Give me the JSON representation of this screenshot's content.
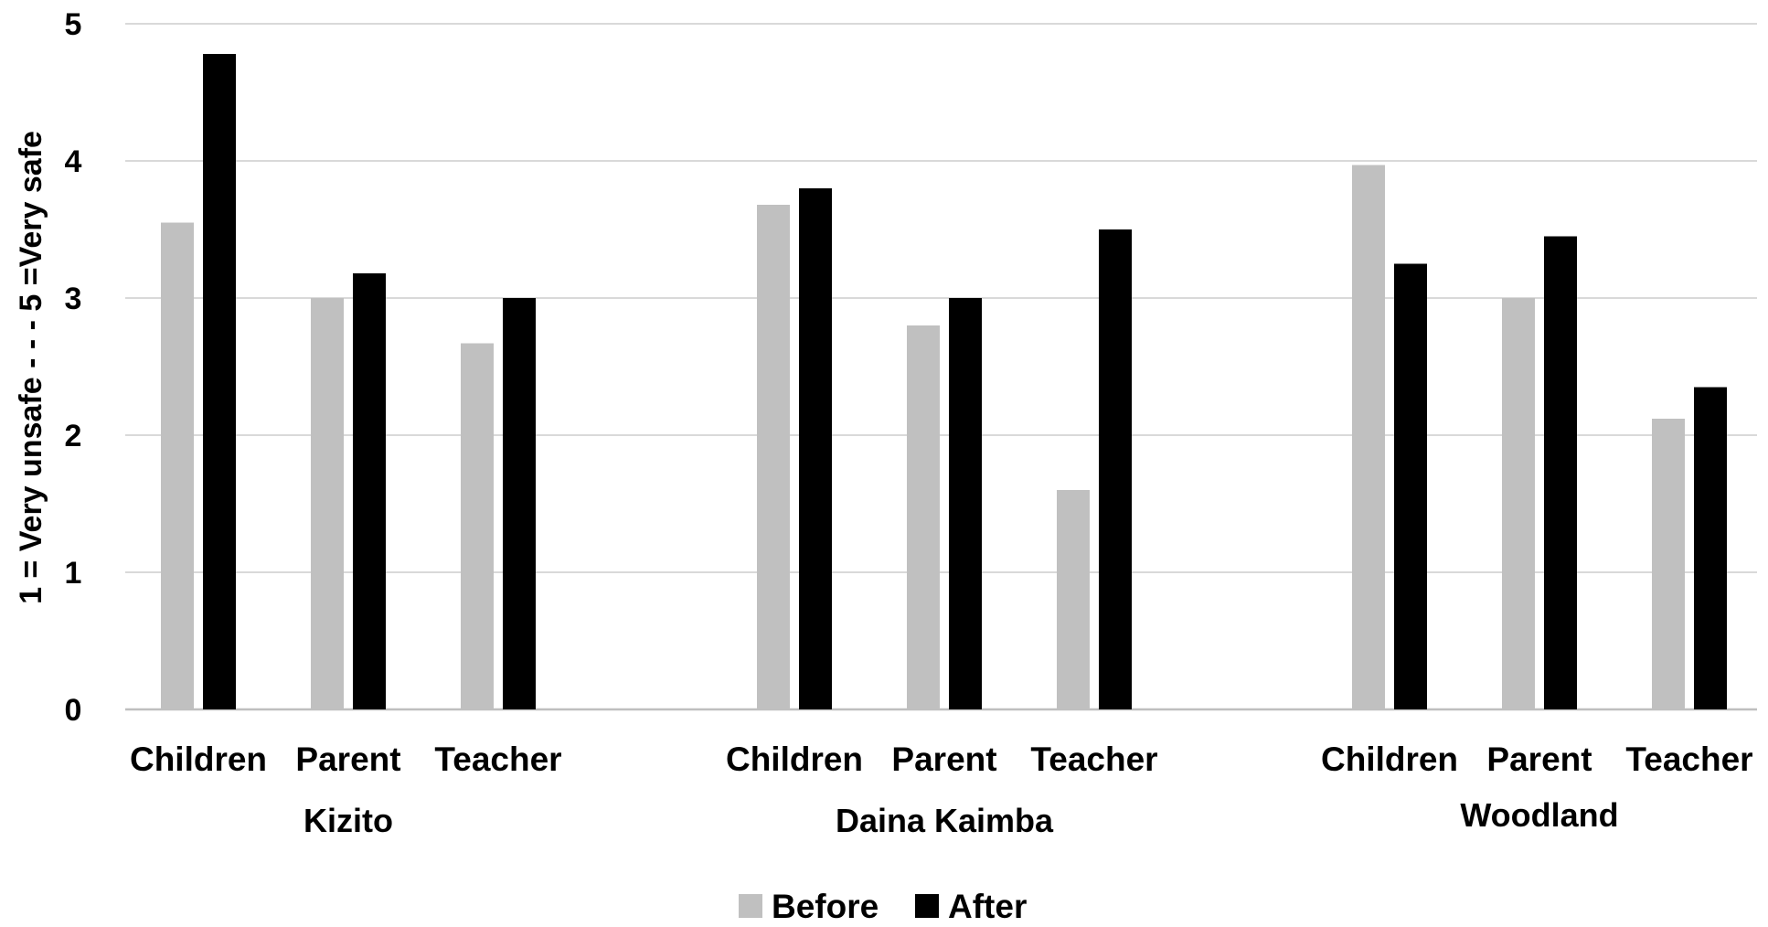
{
  "chart_data": {
    "type": "bar",
    "ylabel": "1 = Very unsafe - - - 5 =Very safe",
    "ylim": [
      0,
      5
    ],
    "yticks": [
      0,
      1,
      2,
      3,
      4,
      5
    ],
    "grid": true,
    "legend_position": "bottom",
    "groups": [
      {
        "name": "Kizito",
        "categories": [
          "Children",
          "Parent",
          "Teacher"
        ]
      },
      {
        "name": "Daina Kaimba",
        "categories": [
          "Children",
          "Parent",
          "Teacher"
        ]
      },
      {
        "name": "Woodland",
        "categories": [
          "Children",
          "Parent",
          "Teacher"
        ]
      }
    ],
    "series": [
      {
        "name": "Before",
        "color": "#c0c0c0",
        "values": [
          3.55,
          3.0,
          2.67,
          3.68,
          2.8,
          1.6,
          3.97,
          3.0,
          2.12
        ]
      },
      {
        "name": "After",
        "color": "#000000",
        "values": [
          4.78,
          3.18,
          3.0,
          3.8,
          3.0,
          3.5,
          3.25,
          3.45,
          2.35
        ]
      }
    ]
  }
}
